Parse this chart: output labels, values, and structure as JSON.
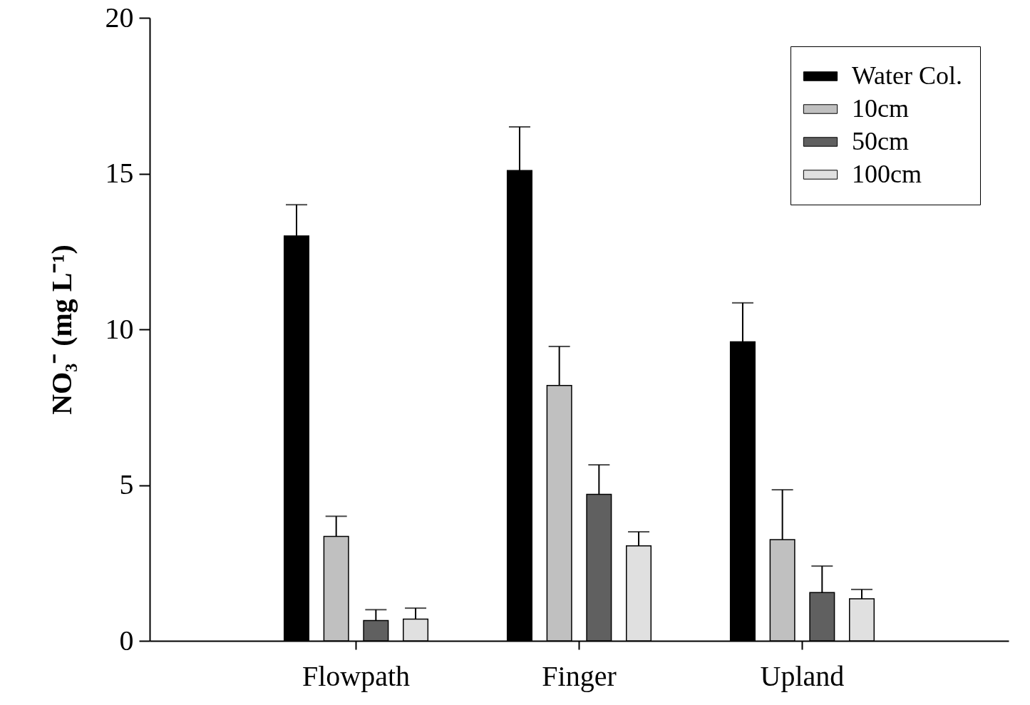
{
  "chart_data": {
    "type": "bar",
    "ylabel": "NO₃⁻ (mg L⁻¹)",
    "categories": [
      "Flowpath",
      "Finger",
      "Upland"
    ],
    "series": [
      {
        "name": "Water Col.",
        "color": "#000000",
        "values": [
          13.0,
          15.1,
          9.6
        ],
        "errors": [
          [
            13.0,
            14.0
          ],
          [
            15.1,
            16.5
          ],
          [
            9.6,
            10.85
          ]
        ]
      },
      {
        "name": "10cm",
        "color": "#c0c0c0",
        "values": [
          3.35,
          8.2,
          3.25
        ],
        "errors": [
          [
            3.35,
            4.0
          ],
          [
            8.2,
            9.45
          ],
          [
            3.25,
            4.85
          ]
        ]
      },
      {
        "name": "50cm",
        "color": "#606060",
        "values": [
          0.65,
          4.7,
          1.55
        ],
        "errors": [
          [
            0.65,
            1.0
          ],
          [
            4.7,
            5.65
          ],
          [
            1.55,
            2.4
          ]
        ]
      },
      {
        "name": "100cm",
        "color": "#e0e0e0",
        "values": [
          0.7,
          3.05,
          1.35
        ],
        "errors": [
          [
            0.7,
            1.05
          ],
          [
            3.05,
            3.5
          ],
          [
            1.35,
            1.65
          ]
        ]
      }
    ],
    "ylim": [
      0,
      20
    ],
    "yticks": [
      0,
      5,
      10,
      15,
      20
    ],
    "legend": "top right"
  }
}
